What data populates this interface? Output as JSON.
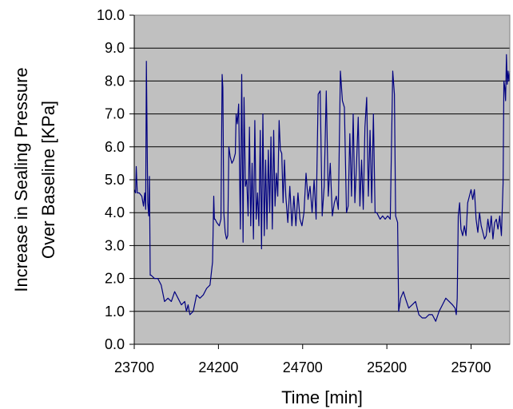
{
  "chart_data": {
    "type": "line",
    "title": "",
    "xlabel": "Time [min]",
    "ylabel_lines": [
      "Increase in Sealing Pressure",
      "Over Baseline [KPa]"
    ],
    "xlim": [
      23700,
      25930
    ],
    "ylim": [
      0,
      10
    ],
    "x_ticks": [
      23700,
      24200,
      24700,
      25200,
      25700
    ],
    "y_ticks": [
      0,
      1,
      2,
      3,
      4,
      5,
      6,
      7,
      8,
      9,
      10
    ],
    "x_tick_labels": [
      "23700",
      "24200",
      "24700",
      "25200",
      "25700"
    ],
    "y_tick_labels": [
      "0.0",
      "1.0",
      "2.0",
      "3.0",
      "4.0",
      "5.0",
      "6.0",
      "7.0",
      "8.0",
      "9.0",
      "10.0"
    ],
    "grid": "horizontal",
    "legend": "none",
    "plot_background": "#c0c0c0",
    "line_color": "#000080",
    "series": [
      {
        "x": [
          23700,
          23708,
          23712,
          23718,
          23730,
          23745,
          23755,
          23762,
          23768,
          23772,
          23780,
          23786,
          23790,
          23795,
          23800,
          23820,
          23840,
          23860,
          23880,
          23900,
          23920,
          23940,
          23960,
          23980,
          24000,
          24010,
          24020,
          24030,
          24050,
          24070,
          24090,
          24110,
          24130,
          24150,
          24165,
          24172,
          24176,
          24180,
          24190,
          24205,
          24215,
          24222,
          24226,
          24232,
          24240,
          24248,
          24255,
          24262,
          24270,
          24280,
          24290,
          24300,
          24305,
          24312,
          24320,
          24330,
          24338,
          24346,
          24352,
          24360,
          24368,
          24376,
          24384,
          24392,
          24400,
          24408,
          24416,
          24424,
          24432,
          24440,
          24448,
          24456,
          24464,
          24472,
          24480,
          24488,
          24496,
          24504,
          24512,
          24520,
          24528,
          24536,
          24544,
          24552,
          24560,
          24568,
          24576,
          24584,
          24592,
          24600,
          24612,
          24624,
          24636,
          24648,
          24660,
          24672,
          24684,
          24696,
          24708,
          24720,
          24732,
          24744,
          24756,
          24768,
          24780,
          24792,
          24804,
          24816,
          24828,
          24840,
          24852,
          24864,
          24876,
          24888,
          24900,
          24912,
          24924,
          24936,
          24948,
          24960,
          24970,
          24980,
          24990,
          25000,
          25010,
          25020,
          25030,
          25040,
          25050,
          25060,
          25070,
          25080,
          25090,
          25100,
          25110,
          25120,
          25130,
          25140,
          25150,
          25160,
          25175,
          25190,
          25205,
          25220,
          25235,
          25245,
          25252,
          25258,
          25264,
          25270,
          25282,
          25290,
          25298,
          25310,
          25330,
          25350,
          25370,
          25390,
          25410,
          25430,
          25450,
          25470,
          25490,
          25510,
          25530,
          25550,
          25570,
          25590,
          25605,
          25612,
          25618,
          25624,
          25632,
          25640,
          25650,
          25660,
          25670,
          25680,
          25690,
          25700,
          25710,
          25720,
          25730,
          25740,
          25750,
          25760,
          25770,
          25780,
          25790,
          25800,
          25810,
          25820,
          25830,
          25840,
          25850,
          25860,
          25870,
          25880,
          25890,
          25895,
          25900,
          25905,
          25910,
          25915,
          25920,
          25925,
          25930
        ],
        "y": [
          4.7,
          4.6,
          5.4,
          4.6,
          4.6,
          4.5,
          4.2,
          4.6,
          4.1,
          8.6,
          4.3,
          3.9,
          5.1,
          2.1,
          2.1,
          2.0,
          2.0,
          1.8,
          1.3,
          1.4,
          1.3,
          1.6,
          1.4,
          1.2,
          1.3,
          1.0,
          1.2,
          0.9,
          1.0,
          1.5,
          1.4,
          1.5,
          1.7,
          1.8,
          2.5,
          4.5,
          3.8,
          3.8,
          3.7,
          3.6,
          3.8,
          8.2,
          7.8,
          4.0,
          3.4,
          3.2,
          3.3,
          6.0,
          5.7,
          5.5,
          5.6,
          5.8,
          7.0,
          6.7,
          7.3,
          3.5,
          8.2,
          3.1,
          7.5,
          4.8,
          5.0,
          3.9,
          6.6,
          3.6,
          5.5,
          3.2,
          6.8,
          3.8,
          4.6,
          3.6,
          6.5,
          2.9,
          7.0,
          3.3,
          5.6,
          3.5,
          5.9,
          4.0,
          6.3,
          3.5,
          6.5,
          4.2,
          5.2,
          4.5,
          6.8,
          5.9,
          5.8,
          4.3,
          5.6,
          4.5,
          3.7,
          4.8,
          3.6,
          4.5,
          3.6,
          4.6,
          3.8,
          3.6,
          4.0,
          5.2,
          4.4,
          4.8,
          4.0,
          5.0,
          3.8,
          7.6,
          7.7,
          3.9,
          4.8,
          7.7,
          4.5,
          5.5,
          3.9,
          4.3,
          4.5,
          4.1,
          8.3,
          7.4,
          7.2,
          4.0,
          4.2,
          6.4,
          4.5,
          7.0,
          4.3,
          5.5,
          6.9,
          4.2,
          5.6,
          4.1,
          6.6,
          7.5,
          4.5,
          6.5,
          4.3,
          7.0,
          4.0,
          4.0,
          3.9,
          3.8,
          3.9,
          3.8,
          3.9,
          3.8,
          8.3,
          7.6,
          3.9,
          3.8,
          3.7,
          1.0,
          1.4,
          1.5,
          1.6,
          1.4,
          1.1,
          1.2,
          1.3,
          0.9,
          0.8,
          0.8,
          0.9,
          0.9,
          0.7,
          1.0,
          1.2,
          1.4,
          1.3,
          1.2,
          1.1,
          0.9,
          1.4,
          3.9,
          4.3,
          3.5,
          3.3,
          3.6,
          3.3,
          4.3,
          4.5,
          4.7,
          4.4,
          4.7,
          3.8,
          3.4,
          4.0,
          3.6,
          3.4,
          3.2,
          3.3,
          3.8,
          3.4,
          3.9,
          3.2,
          3.7,
          3.8,
          3.5,
          3.9,
          3.3,
          4.9,
          8.0,
          7.8,
          7.4,
          8.8,
          7.9,
          8.3,
          8.0,
          8.3
        ]
      }
    ]
  }
}
